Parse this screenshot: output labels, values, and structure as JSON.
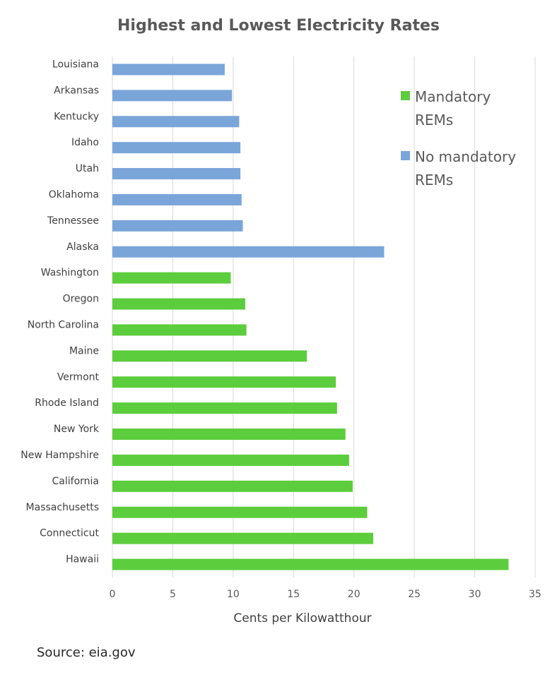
{
  "colors": {
    "mandatory": "#5ccd3c",
    "no_mandatory": "#7aa5d9",
    "grid": "#d9d9d9"
  },
  "source": "Source: eia.gov",
  "chart_data": {
    "type": "bar",
    "orientation": "horizontal",
    "title": "Highest and Lowest Electricity Rates",
    "xlabel": "Cents per Kilowatthour",
    "xlim": [
      0,
      35
    ],
    "xticks": [
      0,
      5,
      10,
      15,
      20,
      25,
      30,
      35
    ],
    "grid": true,
    "legend": {
      "placement": "top-right",
      "entries": [
        {
          "label": [
            "Mandatory",
            "REMs"
          ],
          "color": "#5ccd3c",
          "key": "mandatory"
        },
        {
          "label": [
            "No mandatory",
            "REMs"
          ],
          "color": "#7aa5d9",
          "key": "no_mandatory"
        }
      ]
    },
    "bars": [
      {
        "category": "Louisiana",
        "value": 9.3,
        "group": "no_mandatory"
      },
      {
        "category": "Arkansas",
        "value": 9.9,
        "group": "no_mandatory"
      },
      {
        "category": "Kentucky",
        "value": 10.5,
        "group": "no_mandatory"
      },
      {
        "category": "Idaho",
        "value": 10.6,
        "group": "no_mandatory"
      },
      {
        "category": "Utah",
        "value": 10.6,
        "group": "no_mandatory"
      },
      {
        "category": "Oklahoma",
        "value": 10.7,
        "group": "no_mandatory"
      },
      {
        "category": "Tennessee",
        "value": 10.8,
        "group": "no_mandatory"
      },
      {
        "category": "Alaska",
        "value": 22.5,
        "group": "no_mandatory"
      },
      {
        "category": "Washington",
        "value": 9.8,
        "group": "mandatory"
      },
      {
        "category": "Oregon",
        "value": 11.0,
        "group": "mandatory"
      },
      {
        "category": "North Carolina",
        "value": 11.1,
        "group": "mandatory"
      },
      {
        "category": "Maine",
        "value": 16.1,
        "group": "mandatory"
      },
      {
        "category": "Vermont",
        "value": 18.5,
        "group": "mandatory"
      },
      {
        "category": "Rhode Island",
        "value": 18.6,
        "group": "mandatory"
      },
      {
        "category": "New York",
        "value": 19.3,
        "group": "mandatory"
      },
      {
        "category": "New Hampshire",
        "value": 19.6,
        "group": "mandatory"
      },
      {
        "category": "California",
        "value": 19.9,
        "group": "mandatory"
      },
      {
        "category": "Massachusetts",
        "value": 21.1,
        "group": "mandatory"
      },
      {
        "category": "Connecticut",
        "value": 21.6,
        "group": "mandatory"
      },
      {
        "category": "Hawaii",
        "value": 32.8,
        "group": "mandatory"
      }
    ]
  }
}
